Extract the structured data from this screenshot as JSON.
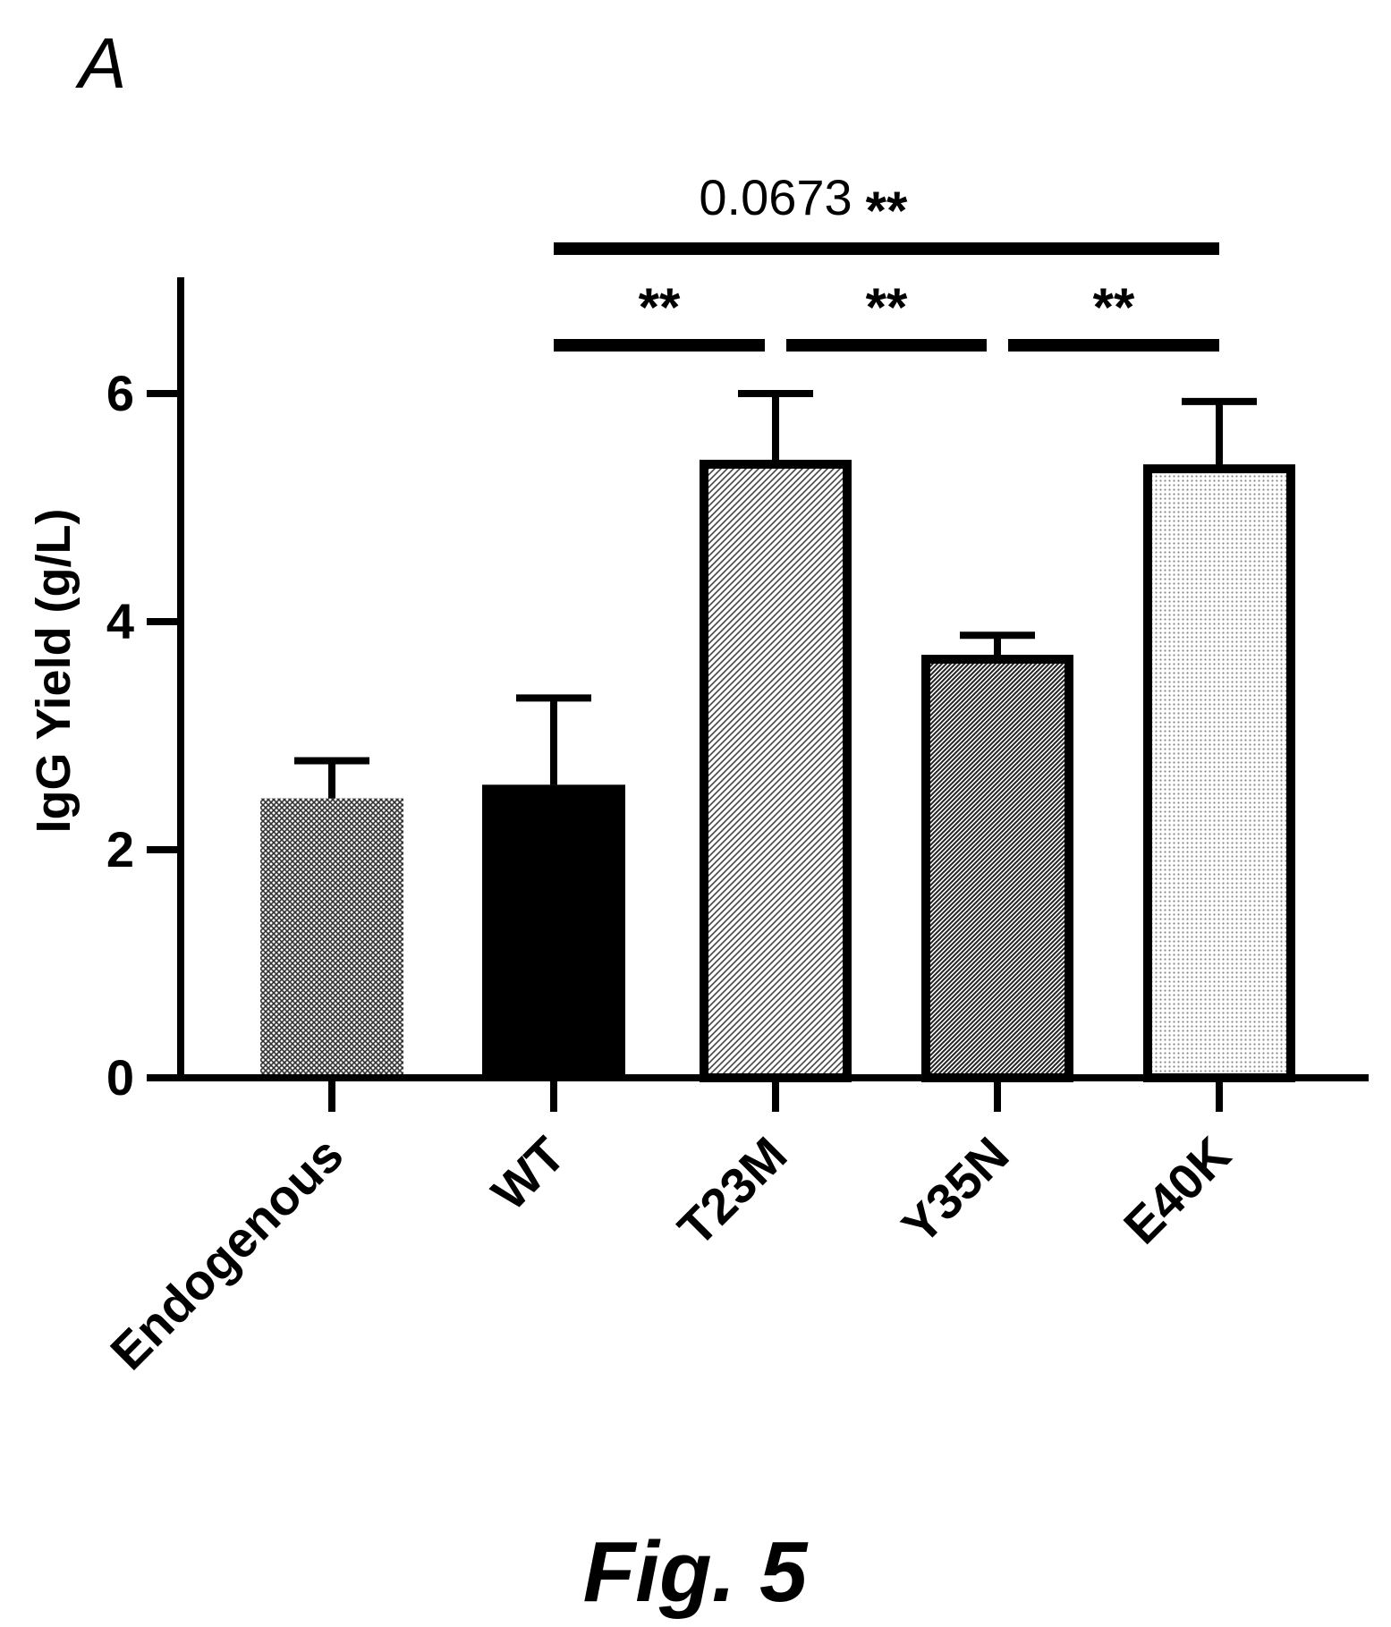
{
  "panel_label": "A",
  "figure_caption": "Fig. 5",
  "chart_data": {
    "type": "bar",
    "categories": [
      "Endogenous",
      "WT",
      "T23M",
      "Y35N",
      "E40K"
    ],
    "values": [
      2.45,
      2.57,
      5.38,
      3.67,
      5.34
    ],
    "errors": [
      0.33,
      0.76,
      0.62,
      0.21,
      0.59
    ],
    "ylabel": "IgG Yield (g/L)",
    "xlabel": "",
    "ylim": [
      0,
      7
    ],
    "yticks": [
      0,
      2,
      4,
      6
    ],
    "ytick_labels": [
      "0",
      "2",
      "4",
      "6"
    ],
    "grid": false,
    "legend": "none",
    "fills": [
      {
        "pattern": "crosshatch",
        "color": "#333333"
      },
      {
        "pattern": "solid",
        "color": "#000000"
      },
      {
        "pattern": "diagonal",
        "color": "#444444"
      },
      {
        "pattern": "dense-diagonal",
        "color": "#222222"
      },
      {
        "pattern": "dots",
        "color": "#888888"
      }
    ],
    "annotations": [
      {
        "from": "WT",
        "to": "E40K",
        "label": "**"
      },
      {
        "from": "WT",
        "to": "Y35N",
        "label": "0.0673"
      },
      {
        "from": "WT",
        "to": "T23M",
        "label": "**"
      },
      {
        "from": "T23M",
        "to": "Y35N",
        "label": "**"
      },
      {
        "from": "Y35N",
        "to": "E40K",
        "label": "**"
      }
    ]
  }
}
